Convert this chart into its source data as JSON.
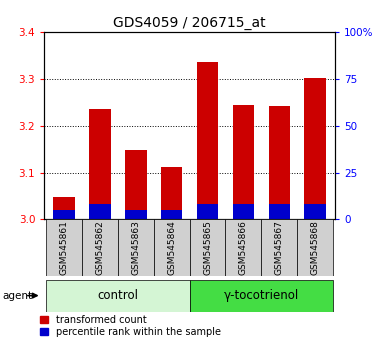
{
  "title": "GDS4059 / 206715_at",
  "samples": [
    "GSM545861",
    "GSM545862",
    "GSM545863",
    "GSM545864",
    "GSM545865",
    "GSM545866",
    "GSM545867",
    "GSM545868"
  ],
  "red_values": [
    3.048,
    3.235,
    3.148,
    3.112,
    3.335,
    3.245,
    3.242,
    3.302
  ],
  "blue_values": [
    5,
    8,
    5,
    5,
    8,
    8,
    8,
    8
  ],
  "ylim_left": [
    3.0,
    3.4
  ],
  "ylim_right": [
    0,
    100
  ],
  "yticks_left": [
    3.0,
    3.1,
    3.2,
    3.3,
    3.4
  ],
  "yticks_right": [
    0,
    25,
    50,
    75,
    100
  ],
  "groups": [
    {
      "label": "control",
      "indices": [
        0,
        1,
        2,
        3
      ],
      "color": "#d4f5d4"
    },
    {
      "label": "γ-tocotrienol",
      "indices": [
        4,
        5,
        6,
        7
      ],
      "color": "#44dd44"
    }
  ],
  "agent_label": "agent",
  "bar_width": 0.6,
  "red_color": "#cc0000",
  "blue_color": "#0000cc",
  "title_fontsize": 10,
  "tick_fontsize": 7.5,
  "group_fontsize": 8.5,
  "legend_fontsize": 7,
  "sample_fontsize": 6.5
}
